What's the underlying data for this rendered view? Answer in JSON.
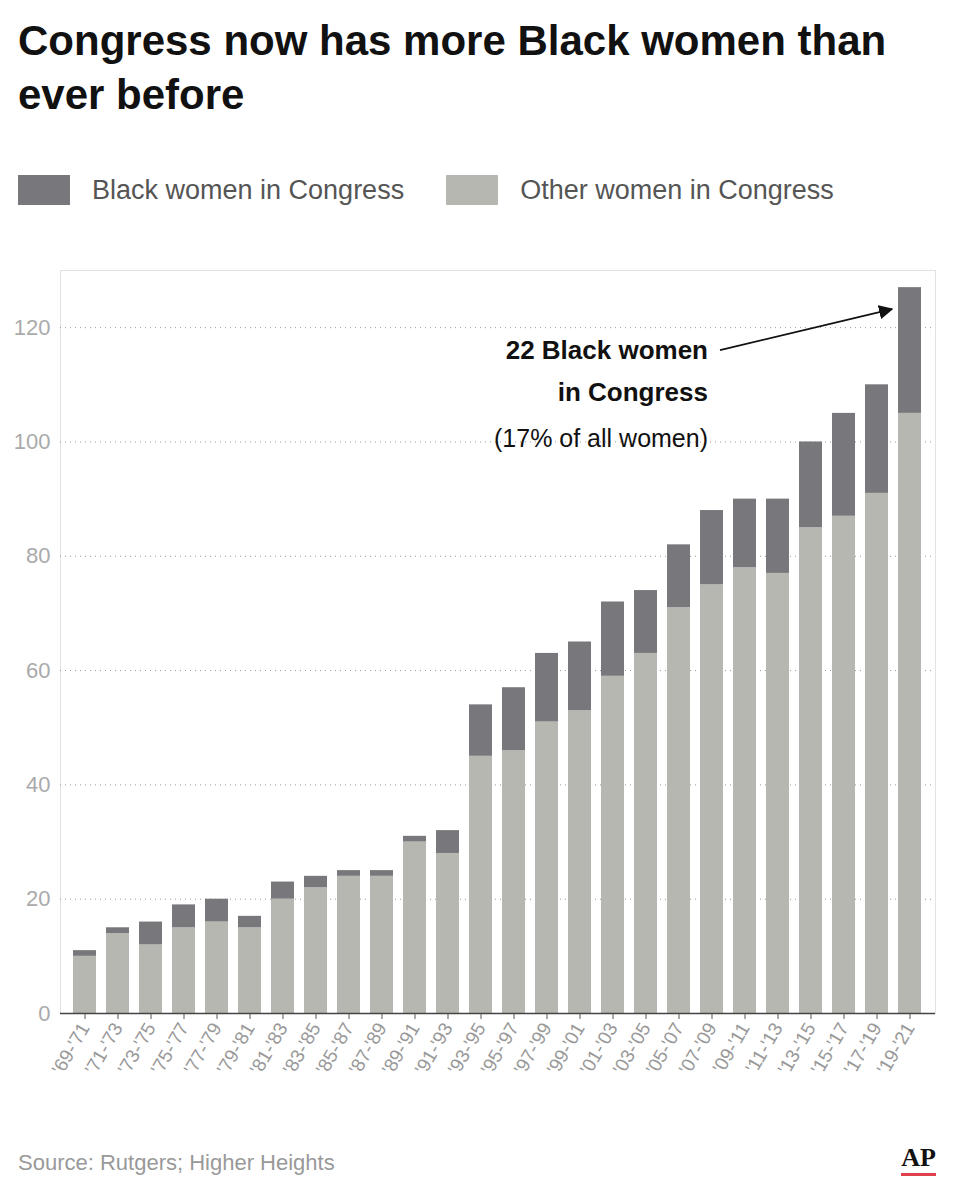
{
  "chart_data": {
    "type": "bar",
    "stacked": true,
    "title": "Congress now has more Black women than ever before",
    "categories": [
      "'69-'71",
      "'71-'73",
      "'73-'75",
      "'75-'77",
      "'77-'79",
      "'79-'81",
      "'81-'83",
      "'83-'85",
      "'85-'87",
      "'87-'89",
      "'89-'91",
      "'91-'93",
      "'93-'95",
      "'95-'97",
      "'97-'99",
      "'99-'01",
      "'01-'03",
      "'03-'05",
      "'05-'07",
      "'07-'09",
      "'09-'11",
      "'11-'13",
      "'13-'15",
      "'15-'17",
      "'17-'19",
      "'19-'21"
    ],
    "series": [
      {
        "name": "Black women in Congress",
        "color": "#78787c",
        "values": [
          1,
          1,
          4,
          4,
          4,
          2,
          3,
          2,
          1,
          1,
          1,
          4,
          9,
          11,
          12,
          12,
          13,
          11,
          11,
          13,
          12,
          13,
          15,
          18,
          19,
          22
        ]
      },
      {
        "name": "Other women in Congress",
        "color": "#b6b7b1",
        "values": [
          10,
          14,
          12,
          15,
          16,
          15,
          20,
          22,
          24,
          24,
          30,
          28,
          45,
          46,
          51,
          53,
          59,
          63,
          71,
          75,
          78,
          77,
          85,
          87,
          91,
          105
        ]
      }
    ],
    "ylim": [
      0,
      130
    ],
    "yticks": [
      0,
      20,
      40,
      60,
      80,
      100,
      120
    ],
    "grid": true,
    "legend": "top",
    "annotation": {
      "text": [
        "22 Black women",
        "in Congress"
      ],
      "note": "(17% of all women)"
    },
    "source": "Source: Rutgers; Higher Heights",
    "credit": "AP"
  }
}
